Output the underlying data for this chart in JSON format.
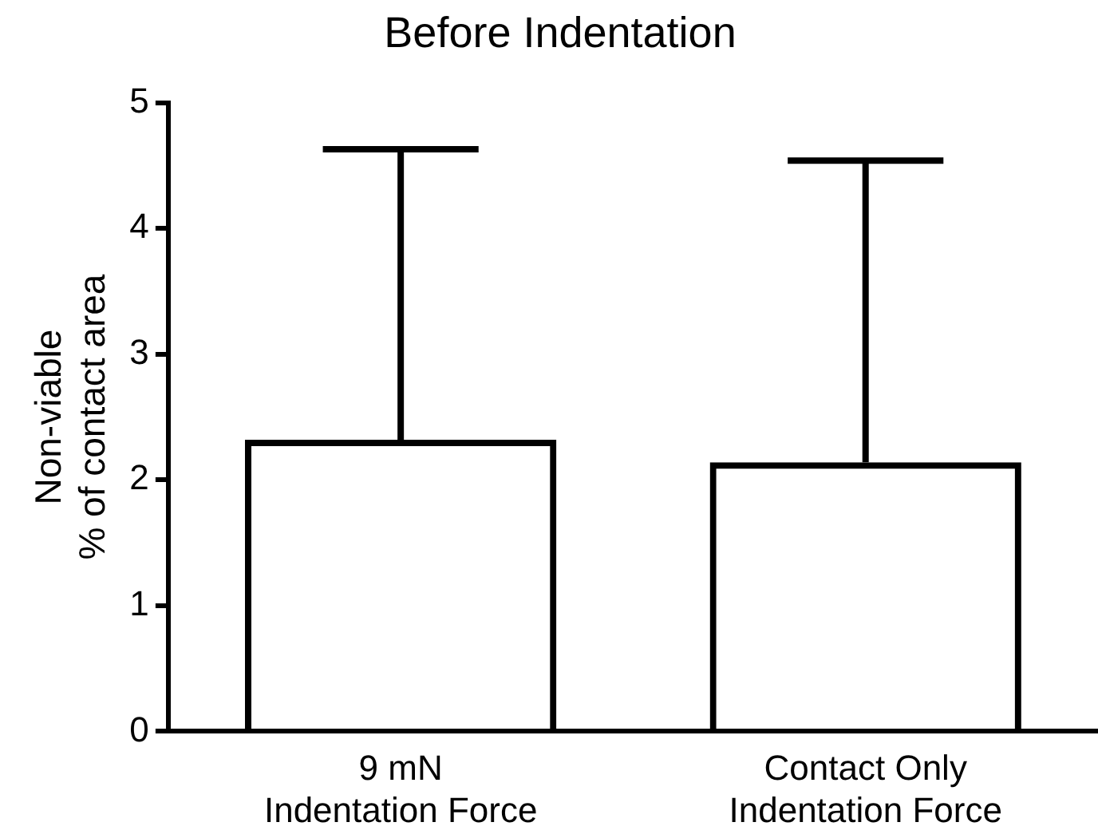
{
  "chart_data": {
    "type": "bar",
    "title": "Before Indentation",
    "ylabel": "Non-viable\n% of contact area",
    "categories": [
      "9 mN\nIndentation Force",
      "Contact Only\nIndentation Force"
    ],
    "values": [
      2.32,
      2.14
    ],
    "color": "#000000",
    "errors": [
      [
        2.32,
        4.63
      ],
      [
        2.14,
        4.54
      ]
    ],
    "ylim": [
      0,
      5
    ],
    "yticks": [
      0,
      1,
      2,
      3,
      4,
      5
    ],
    "grid": false,
    "legend": false
  }
}
